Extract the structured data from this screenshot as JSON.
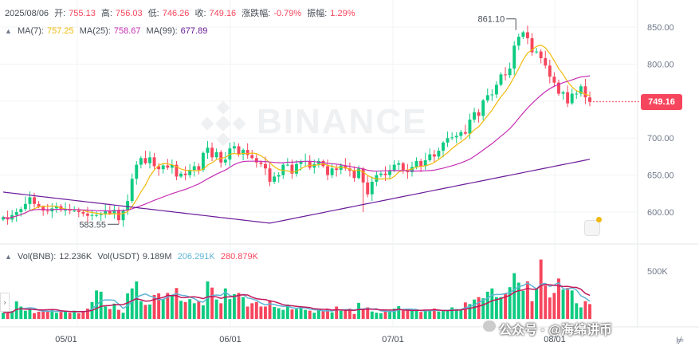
{
  "header": {
    "date": "2025/08/06",
    "open_label": "开:",
    "open": "755.13",
    "high_label": "高:",
    "high": "756.03",
    "low_label": "低:",
    "low": "746.26",
    "close_label": "收:",
    "close": "749.16",
    "change_label": "涨跌幅:",
    "change": "-0.79%",
    "amp_label": "振幅:",
    "amp": "1.29%"
  },
  "ma_legend": {
    "ma7_label": "MA(7):",
    "ma7": "757.25",
    "ma25_label": "MA(25):",
    "ma25": "758.67",
    "ma99_label": "MA(99):",
    "ma99": "677.89"
  },
  "vol_legend": {
    "bnb_label": "Vol(BNB):",
    "bnb": "12.236K",
    "usdt_label": "Vol(USDT)",
    "usdt": "9.189M",
    "ma1": "206.291K",
    "ma2": "280.879K"
  },
  "current_price": "749.16",
  "watermark": "BINANCE",
  "brand_text": "公众号 · @海绵讲币",
  "colors": {
    "up": "#0ecb81",
    "down": "#f6465d",
    "ma7": "#f0b90b",
    "ma25": "#c62fb5",
    "ma99": "#6a1b9a",
    "vol_ma1": "#5fb5d6",
    "vol_ma2": "#c2185b"
  },
  "chart_data": {
    "type": "candlestick",
    "title": "",
    "x_ticks": [
      "05/01",
      "06/01",
      "07/01",
      "08/01"
    ],
    "y_ticks": [
      "850.00",
      "800.00",
      "750.00",
      "700.00",
      "650.00",
      "600.00"
    ],
    "ylim": [
      560,
      870
    ],
    "volume_ticks": [
      "500K"
    ],
    "annotations": [
      {
        "label": "861.10",
        "type": "high"
      },
      {
        "label": "583.55",
        "type": "low"
      }
    ],
    "series": [
      {
        "name": "MA(7)"
      },
      {
        "name": "MA(25)"
      },
      {
        "name": "MA(99)"
      }
    ],
    "volume_series": [
      {
        "name": "Vol(BNB)"
      },
      {
        "name": "Vol(USDT)"
      }
    ],
    "closes": [
      593,
      590,
      596,
      600,
      604,
      611,
      620,
      611,
      607,
      602,
      601,
      605,
      608,
      603,
      603,
      602,
      602,
      600,
      598,
      595,
      596,
      596,
      597,
      601,
      598,
      603,
      589,
      602,
      615,
      645,
      664,
      673,
      666,
      674,
      662,
      658,
      663,
      660,
      664,
      648,
      652,
      650,
      657,
      662,
      657,
      680,
      687,
      674,
      681,
      667,
      671,
      686,
      689,
      678,
      684,
      677,
      673,
      667,
      665,
      659,
      641,
      648,
      650,
      664,
      664,
      652,
      665,
      668,
      669,
      660,
      665,
      669,
      662,
      650,
      659,
      657,
      663,
      659,
      656,
      646,
      659,
      640,
      624,
      641,
      650,
      652,
      650,
      656,
      664,
      666,
      656,
      654,
      661,
      669,
      662,
      670,
      678,
      675,
      683,
      694,
      700,
      701,
      703,
      708,
      706,
      725,
      735,
      730,
      751,
      758,
      759,
      772,
      786,
      785,
      794,
      825,
      837,
      843,
      835,
      816,
      817,
      808,
      798,
      783,
      775,
      760,
      762,
      747,
      760,
      760,
      770,
      755,
      749
    ],
    "volumes": [
      30,
      32,
      38,
      85,
      60,
      40,
      48,
      28,
      35,
      38,
      40,
      42,
      30,
      34,
      40,
      30,
      40,
      28,
      38,
      50,
      82,
      138,
      132,
      60,
      48,
      74,
      44,
      30,
      124,
      148,
      182,
      86,
      68,
      70,
      116,
      124,
      96,
      126,
      116,
      150,
      88,
      82,
      96,
      76,
      86,
      66,
      182,
      152,
      94,
      76,
      148,
      96,
      120,
      126,
      106,
      60,
      76,
      82,
      60,
      60,
      90,
      58,
      52,
      44,
      70,
      46,
      48,
      60,
      44,
      40,
      30,
      44,
      38,
      48,
      32,
      60,
      40,
      44,
      50,
      24,
      78,
      46,
      56,
      36,
      30,
      28,
      40,
      40,
      50,
      62,
      40,
      44,
      40,
      40,
      34,
      40,
      44,
      50,
      36,
      38,
      40,
      56,
      48,
      46,
      80,
      72,
      94,
      106,
      100,
      132,
      148,
      106,
      106,
      124,
      154,
      222,
      176,
      136,
      182,
      86,
      146,
      288,
      162,
      104,
      126,
      196,
      142,
      150,
      138,
      76,
      56,
      86,
      72
    ]
  }
}
